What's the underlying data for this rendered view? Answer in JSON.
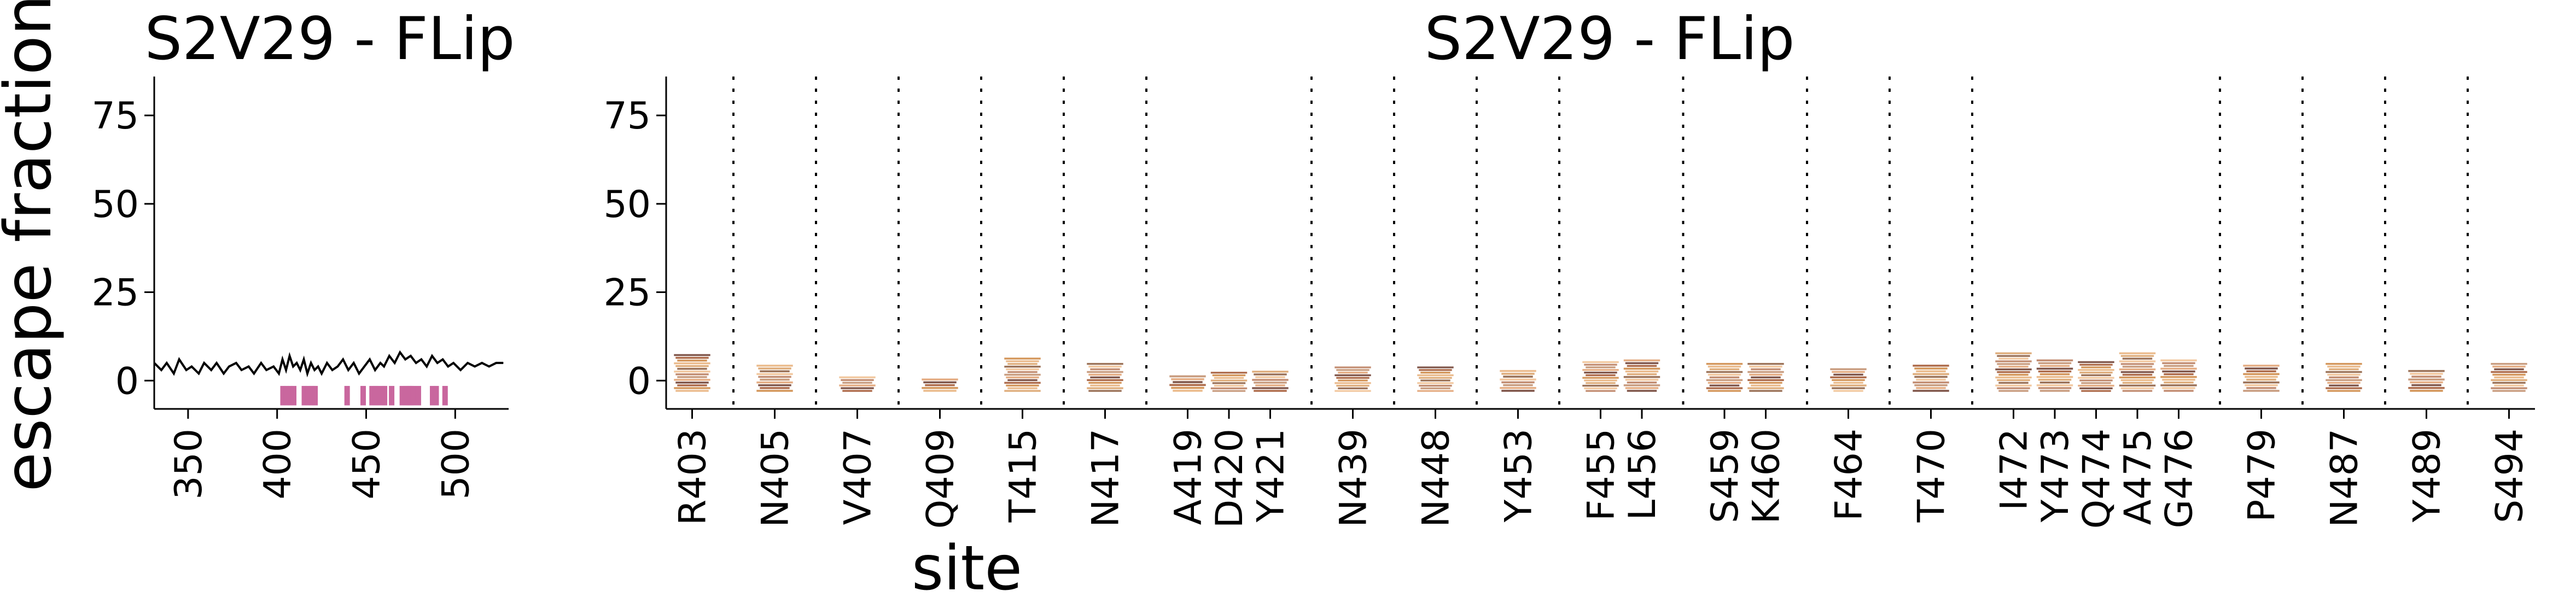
{
  "figure": {
    "ylabel": "escape fraction",
    "xlabel": "site"
  },
  "chart_data": [
    {
      "type": "line",
      "title": "S2V29 - FLip",
      "xlabel": "",
      "ylabel": "escape fraction",
      "xlim": [
        331,
        530
      ],
      "ylim": [
        -8,
        86
      ],
      "xticks": [
        350,
        400,
        450,
        500
      ],
      "yticks": [
        0,
        25,
        50,
        75
      ],
      "grid": false,
      "series": [
        {
          "x": [
            331,
            335,
            338,
            342,
            345,
            349,
            352,
            356,
            359,
            363,
            366,
            370,
            373,
            377,
            380,
            384,
            387,
            391,
            394,
            398,
            401,
            403,
            405,
            407,
            409,
            411,
            413,
            415,
            417,
            419,
            421,
            423,
            425,
            428,
            431,
            434,
            437,
            440,
            443,
            446,
            449,
            452,
            455,
            458,
            460,
            463,
            466,
            469,
            472,
            475,
            478,
            481,
            484,
            487,
            490,
            493,
            496,
            499,
            503,
            507,
            511,
            515,
            519,
            523,
            527
          ],
          "y": [
            5,
            3,
            5,
            2,
            6,
            3,
            4,
            2,
            5,
            3,
            5,
            2,
            4,
            5,
            3,
            4,
            2,
            5,
            3,
            4,
            2,
            6,
            3,
            7,
            4,
            5,
            3,
            6,
            2,
            5,
            3,
            4,
            2,
            5,
            3,
            4,
            6,
            3,
            5,
            2,
            4,
            6,
            3,
            5,
            4,
            7,
            5,
            8,
            6,
            7,
            5,
            6,
            4,
            7,
            5,
            6,
            4,
            5,
            3,
            5,
            4,
            5,
            4,
            5,
            5
          ]
        }
      ],
      "highlighted_sites": [
        403,
        405,
        407,
        409,
        415,
        417,
        419,
        420,
        421,
        439,
        448,
        453,
        455,
        456,
        459,
        460,
        464,
        470,
        472,
        473,
        474,
        475,
        476,
        479,
        487,
        489,
        494
      ],
      "highlight_color": "#c9679e"
    },
    {
      "type": "logo",
      "title": "S2V29 - FLip",
      "xlabel": "site",
      "ylabel": "",
      "ylim": [
        -8,
        86
      ],
      "yticks": [
        0,
        25,
        50,
        75
      ],
      "grid": false,
      "sites": [
        {
          "label": "R403",
          "value": 7.5
        },
        {
          "label": "N405",
          "value": 4.5
        },
        {
          "label": "V407",
          "value": 1.2
        },
        {
          "label": "Q409",
          "value": 0.6
        },
        {
          "label": "T415",
          "value": 6.5
        },
        {
          "label": "N417",
          "value": 5
        },
        {
          "label": "A419",
          "value": 1.5
        },
        {
          "label": "D420",
          "value": 2.5
        },
        {
          "label": "Y421",
          "value": 2.8
        },
        {
          "label": "N439",
          "value": 4
        },
        {
          "label": "N448",
          "value": 4
        },
        {
          "label": "Y453",
          "value": 3
        },
        {
          "label": "F455",
          "value": 5.5
        },
        {
          "label": "L456",
          "value": 6
        },
        {
          "label": "S459",
          "value": 5
        },
        {
          "label": "K460",
          "value": 5
        },
        {
          "label": "F464",
          "value": 3.5
        },
        {
          "label": "T470",
          "value": 4.5
        },
        {
          "label": "I472",
          "value": 8
        },
        {
          "label": "Y473",
          "value": 6
        },
        {
          "label": "Q474",
          "value": 5.5
        },
        {
          "label": "A475",
          "value": 8
        },
        {
          "label": "G476",
          "value": 6
        },
        {
          "label": "P479",
          "value": 4.5
        },
        {
          "label": "N487",
          "value": 5
        },
        {
          "label": "Y489",
          "value": 3
        },
        {
          "label": "S494",
          "value": 5
        }
      ],
      "logo_colors": [
        "#6b3a2c",
        "#a0522d",
        "#cd853f",
        "#e8b07a",
        "#d9a066",
        "#8b5a3c",
        "#f0c090",
        "#b87a5a",
        "#c08c6a",
        "#e0a070"
      ]
    }
  ]
}
